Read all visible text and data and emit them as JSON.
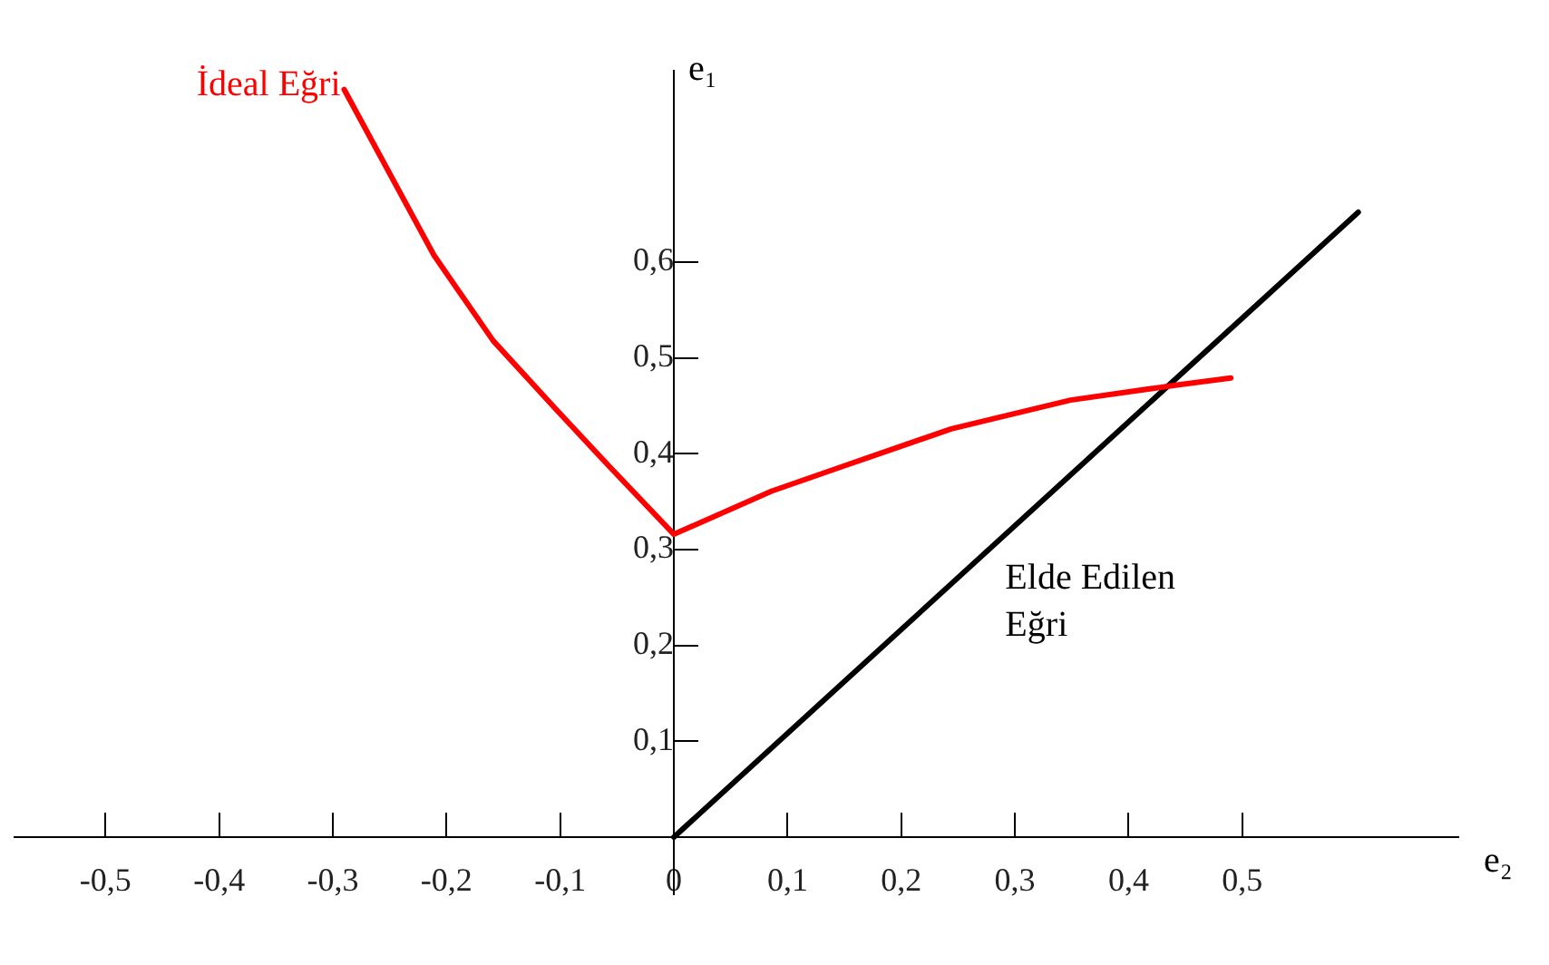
{
  "chart_data": {
    "type": "line",
    "xlabel": "e₂",
    "ylabel": "e₁",
    "xlim": [
      -0.58,
      0.69
    ],
    "ylim": [
      -0.06,
      0.8
    ],
    "xticks": [
      {
        "value": -0.5,
        "label": "-0,5"
      },
      {
        "value": -0.4,
        "label": "-0,4"
      },
      {
        "value": -0.3,
        "label": "-0,3"
      },
      {
        "value": -0.2,
        "label": "-0,2"
      },
      {
        "value": -0.1,
        "label": "-0,1"
      },
      {
        "value": 0,
        "label": "0"
      },
      {
        "value": 0.1,
        "label": "0,1"
      },
      {
        "value": 0.2,
        "label": "0,2"
      },
      {
        "value": 0.3,
        "label": "0,3"
      },
      {
        "value": 0.4,
        "label": "0,4"
      },
      {
        "value": 0.5,
        "label": "0,5"
      }
    ],
    "yticks": [
      {
        "value": 0.1,
        "label": "0,1"
      },
      {
        "value": 0.2,
        "label": "0,2"
      },
      {
        "value": 0.3,
        "label": "0,3"
      },
      {
        "value": 0.4,
        "label": "0,4"
      },
      {
        "value": 0.5,
        "label": "0,5"
      },
      {
        "value": 0.6,
        "label": "0,6"
      }
    ],
    "grid": false,
    "legend": false,
    "marker": "none",
    "line_style": "solid",
    "series": [
      {
        "name": "İdeal Eğri",
        "color": "#ff0000",
        "x": [
          -0.29,
          -0.211,
          -0.159,
          -0.105,
          -0.057,
          0,
          0.086,
          0.149,
          0.244,
          0.349,
          0.444,
          0.49
        ],
        "values": [
          0.78,
          0.607,
          0.518,
          0.448,
          0.387,
          0.316,
          0.361,
          0.387,
          0.426,
          0.456,
          0.472,
          0.479
        ]
      },
      {
        "name": "Elde Edilen Eğri",
        "color": "#000000",
        "x": [
          0,
          0.602
        ],
        "values": [
          0,
          0.652
        ]
      }
    ]
  }
}
